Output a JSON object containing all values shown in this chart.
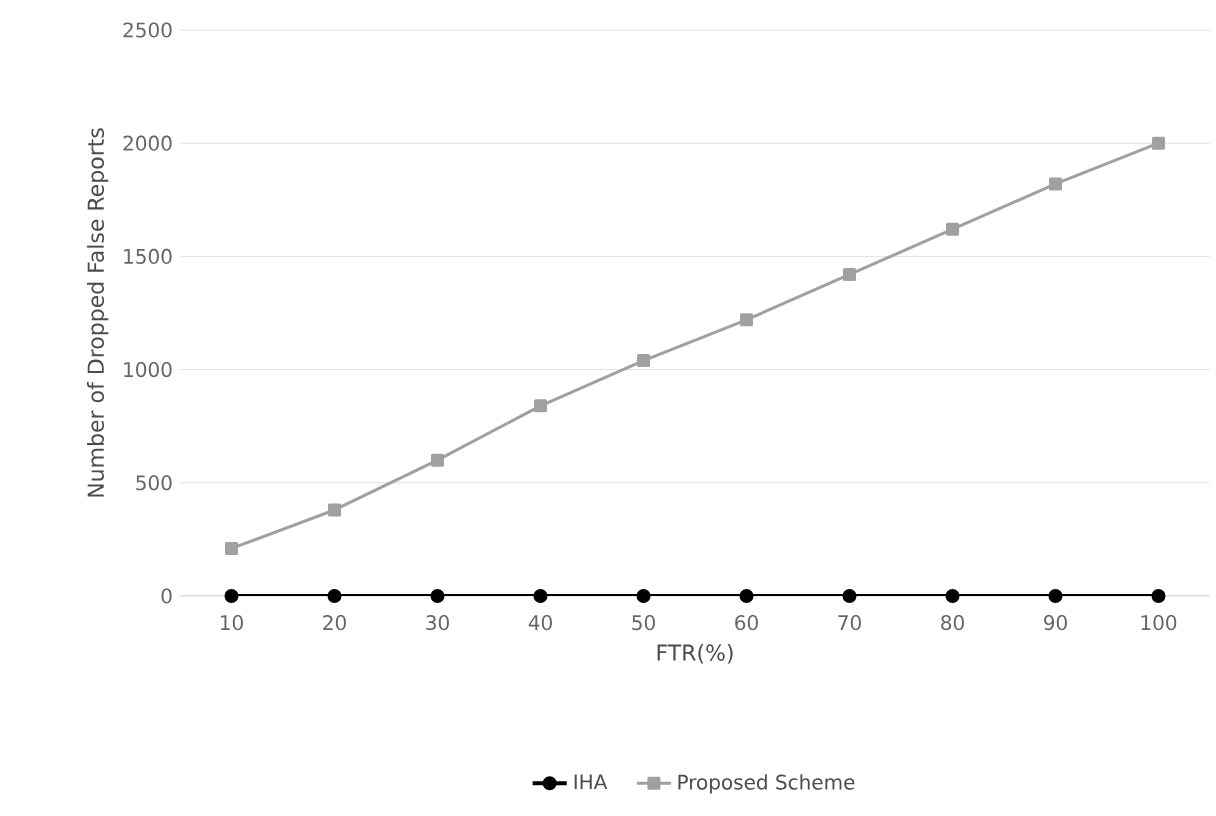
{
  "chart_data": {
    "type": "line",
    "xlabel": "FTR(%)",
    "ylabel": "Number of Dropped False Reports",
    "categories": [
      "10",
      "20",
      "30",
      "40",
      "50",
      "60",
      "70",
      "80",
      "90",
      "100"
    ],
    "series": [
      {
        "name": "IHA",
        "color": "#000000",
        "marker": "circle",
        "values": [
          0,
          0,
          0,
          0,
          0,
          0,
          0,
          0,
          0,
          0
        ]
      },
      {
        "name": "Proposed Scheme",
        "color": "#a0a0a0",
        "marker": "square",
        "values": [
          210,
          380,
          600,
          840,
          1040,
          1220,
          1420,
          1620,
          1820,
          2000
        ]
      }
    ],
    "ylim": [
      0,
      2500
    ],
    "yticks": [
      0,
      500,
      1000,
      1500,
      2000,
      2500
    ],
    "grid": "y",
    "legend": "bottom"
  }
}
